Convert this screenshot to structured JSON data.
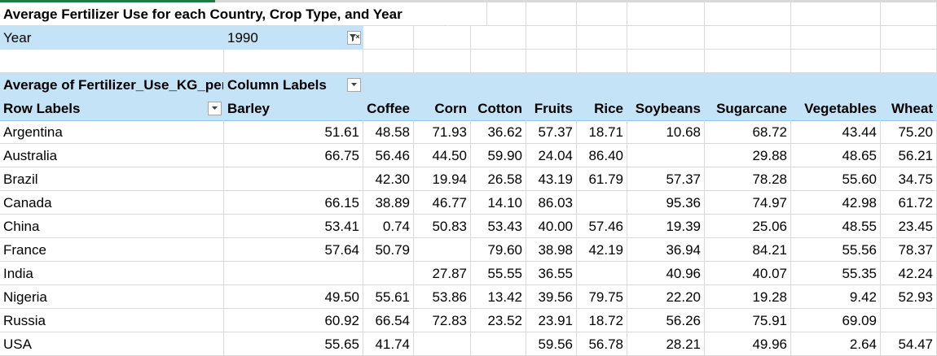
{
  "title": "Average Fertilizer Use for each Country, Crop Type, and Year",
  "filter": {
    "label": "Year",
    "value": "1990"
  },
  "pivot": {
    "values_label": "Average of Fertilizer_Use_KG_per_HA",
    "column_labels": "Column Labels",
    "row_labels": "Row Labels",
    "columns": [
      "Barley",
      "Coffee",
      "Corn",
      "Cotton",
      "Fruits",
      "Rice",
      "Soybeans",
      "Sugarcane",
      "Vegetables",
      "Wheat"
    ],
    "rows": [
      {
        "label": "Argentina",
        "values": [
          "51.61",
          "48.58",
          "71.93",
          "36.62",
          "57.37",
          "18.71",
          "10.68",
          "68.72",
          "43.44",
          "75.20"
        ]
      },
      {
        "label": "Australia",
        "values": [
          "66.75",
          "56.46",
          "44.50",
          "59.90",
          "24.04",
          "86.40",
          "",
          "29.88",
          "48.65",
          "56.21"
        ]
      },
      {
        "label": "Brazil",
        "values": [
          "",
          "42.30",
          "19.94",
          "26.58",
          "43.19",
          "61.79",
          "57.37",
          "78.28",
          "55.60",
          "34.75"
        ]
      },
      {
        "label": "Canada",
        "values": [
          "66.15",
          "38.89",
          "46.77",
          "14.10",
          "86.03",
          "",
          "95.36",
          "74.97",
          "42.98",
          "61.72"
        ]
      },
      {
        "label": "China",
        "values": [
          "53.41",
          "0.74",
          "50.83",
          "53.43",
          "40.00",
          "57.46",
          "19.39",
          "25.06",
          "48.55",
          "23.45"
        ]
      },
      {
        "label": "France",
        "values": [
          "57.64",
          "50.79",
          "",
          "79.60",
          "38.98",
          "42.19",
          "36.94",
          "84.21",
          "55.56",
          "78.37"
        ]
      },
      {
        "label": "India",
        "values": [
          "",
          "",
          "27.87",
          "55.55",
          "36.55",
          "",
          "40.96",
          "40.07",
          "55.35",
          "42.24"
        ]
      },
      {
        "label": "Nigeria",
        "values": [
          "49.50",
          "55.61",
          "53.86",
          "13.42",
          "39.56",
          "79.75",
          "22.20",
          "19.28",
          "9.42",
          "52.93"
        ]
      },
      {
        "label": "Russia",
        "values": [
          "60.92",
          "66.54",
          "72.83",
          "23.52",
          "23.91",
          "18.72",
          "56.26",
          "75.91",
          "69.09",
          ""
        ]
      },
      {
        "label": "USA",
        "values": [
          "55.65",
          "41.74",
          "",
          "",
          "59.56",
          "56.78",
          "28.21",
          "49.96",
          "2.64",
          "54.47"
        ]
      }
    ]
  },
  "colors": {
    "header_fill": "#c5e3f6",
    "gridline": "#d9d9d9",
    "accent_green": "#1f7a45"
  }
}
